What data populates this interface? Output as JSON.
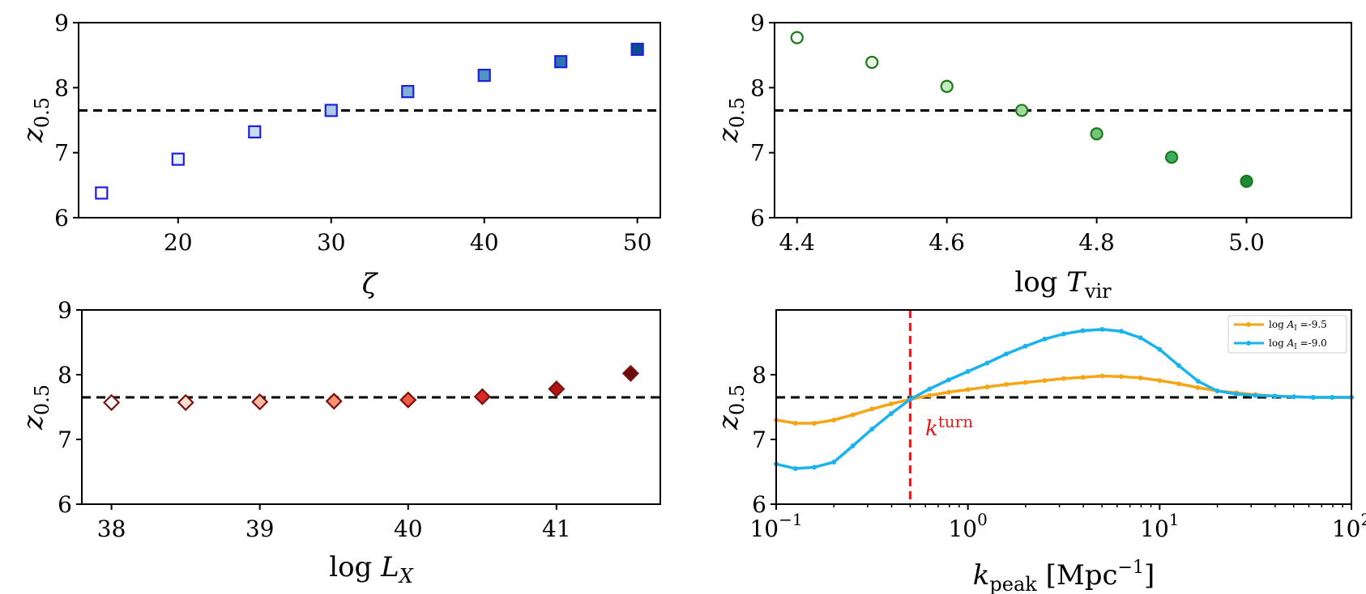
{
  "chart_data": [
    {
      "id": "zeta",
      "type": "scatter",
      "xlabel": "ζ",
      "ylabel": "z0.5",
      "xlim": [
        13.5,
        51.5
      ],
      "ylim": [
        6,
        9
      ],
      "xticks": [
        20,
        30,
        40,
        50
      ],
      "xtick_labels": [
        "20",
        "30",
        "40",
        "50"
      ],
      "yticks": [
        6,
        7,
        8,
        9
      ],
      "ytick_labels": [
        "6",
        "7",
        "8",
        "9"
      ],
      "reference_line_y": 7.65,
      "marker": "square",
      "edge_color": "#1f1fe0",
      "fill_colors": [
        "#ffffff",
        "#e6f0fa",
        "#c9ddf0",
        "#a9cbe6",
        "#7fb1d6",
        "#5294c4",
        "#2b74b0",
        "#0a4d8c"
      ],
      "x": [
        15,
        20,
        25,
        30,
        35,
        40,
        45,
        50
      ],
      "y": [
        6.38,
        6.9,
        7.32,
        7.65,
        7.94,
        8.19,
        8.4,
        8.59
      ]
    },
    {
      "id": "tvir",
      "type": "scatter",
      "xlabel": "log T_vir",
      "ylabel": "z0.5",
      "xlim": [
        4.37,
        5.14
      ],
      "ylim": [
        6,
        9
      ],
      "xticks": [
        4.4,
        4.6,
        4.8,
        5.0
      ],
      "xtick_labels": [
        "4.4",
        "4.6",
        "4.8",
        "5.0"
      ],
      "yticks": [
        6,
        7,
        8,
        9
      ],
      "ytick_labels": [
        "6",
        "7",
        "8",
        "9"
      ],
      "reference_line_y": 7.65,
      "marker": "circle",
      "edge_color": "#1a7a1a",
      "fill_colors": [
        "#ffffff",
        "#e8f5e4",
        "#c7e9c0",
        "#a1d99b",
        "#74c476",
        "#41ab5d",
        "#1c8a3b"
      ],
      "x": [
        4.4,
        4.5,
        4.6,
        4.7,
        4.8,
        4.9,
        5.0
      ],
      "y": [
        8.77,
        8.39,
        8.02,
        7.65,
        7.29,
        6.93,
        6.56
      ]
    },
    {
      "id": "lx",
      "type": "scatter",
      "xlabel": "log L_X",
      "ylabel": "z0.5",
      "xlim": [
        37.8,
        41.7
      ],
      "ylim": [
        6,
        9
      ],
      "xticks": [
        38,
        39,
        40,
        41
      ],
      "xtick_labels": [
        "38",
        "39",
        "40",
        "41"
      ],
      "yticks": [
        6,
        7,
        8,
        9
      ],
      "ytick_labels": [
        "6",
        "7",
        "8",
        "9"
      ],
      "reference_line_y": 7.65,
      "marker": "diamond",
      "edge_color": "#7a1010",
      "fill_colors": [
        "#ffffff",
        "#fde0d2",
        "#fcbba1",
        "#fc9272",
        "#ef5a42",
        "#d92b26",
        "#b01217",
        "#6b0a0a"
      ],
      "x": [
        38.0,
        38.5,
        39.0,
        39.5,
        40.0,
        40.5,
        41.0,
        41.5
      ],
      "y": [
        7.57,
        7.57,
        7.58,
        7.59,
        7.61,
        7.66,
        7.78,
        8.02
      ]
    },
    {
      "id": "kpeak",
      "type": "line",
      "xscale": "log",
      "xlabel": "k_peak [Mpc^-1]",
      "ylabel": "z0.5",
      "xlim": [
        0.1,
        100
      ],
      "ylim": [
        6,
        9
      ],
      "xticks": [
        0.1,
        1,
        10,
        100
      ],
      "xtick_base": "10",
      "xtick_exponents": [
        "−1",
        "0",
        "1",
        "2"
      ],
      "yticks": [
        6,
        7,
        8
      ],
      "ytick_labels": [
        "6",
        "7",
        "8"
      ],
      "reference_line_y": 7.65,
      "vertical_line_x": 0.5,
      "annotation": {
        "base": "k",
        "sup": "turn"
      },
      "legend_position": "top-right",
      "x": [
        0.1,
        0.126,
        0.158,
        0.2,
        0.251,
        0.316,
        0.398,
        0.501,
        0.631,
        0.794,
        1.0,
        1.259,
        1.585,
        1.995,
        2.512,
        3.162,
        3.981,
        5.012,
        6.31,
        7.943,
        10.0,
        12.59,
        15.85,
        19.95,
        25.12,
        31.62,
        39.81,
        50.12,
        63.1,
        79.43,
        100.0
      ],
      "series": [
        {
          "name": "log A_I =-9.5",
          "legend_prefix": "log",
          "legend_sym": "A",
          "legend_sub": "I",
          "legend_suffix": " =-9.5",
          "color": "#f5a515",
          "values": [
            7.3,
            7.25,
            7.25,
            7.3,
            7.38,
            7.47,
            7.55,
            7.62,
            7.68,
            7.73,
            7.77,
            7.81,
            7.85,
            7.88,
            7.91,
            7.94,
            7.96,
            7.98,
            7.97,
            7.95,
            7.91,
            7.86,
            7.8,
            7.75,
            7.72,
            7.69,
            7.67,
            7.66,
            7.65,
            7.65,
            7.65
          ]
        },
        {
          "name": "log A_I =-9.0",
          "legend_prefix": "log",
          "legend_sym": "A",
          "legend_sub": "I",
          "legend_suffix": " =-9.0",
          "color": "#1ab3ee",
          "values": [
            6.62,
            6.55,
            6.57,
            6.65,
            6.9,
            7.16,
            7.4,
            7.62,
            7.78,
            7.92,
            8.05,
            8.18,
            8.32,
            8.44,
            8.55,
            8.63,
            8.68,
            8.7,
            8.67,
            8.57,
            8.39,
            8.14,
            7.9,
            7.75,
            7.7,
            7.68,
            7.67,
            7.66,
            7.65,
            7.65,
            7.65
          ]
        }
      ]
    }
  ]
}
